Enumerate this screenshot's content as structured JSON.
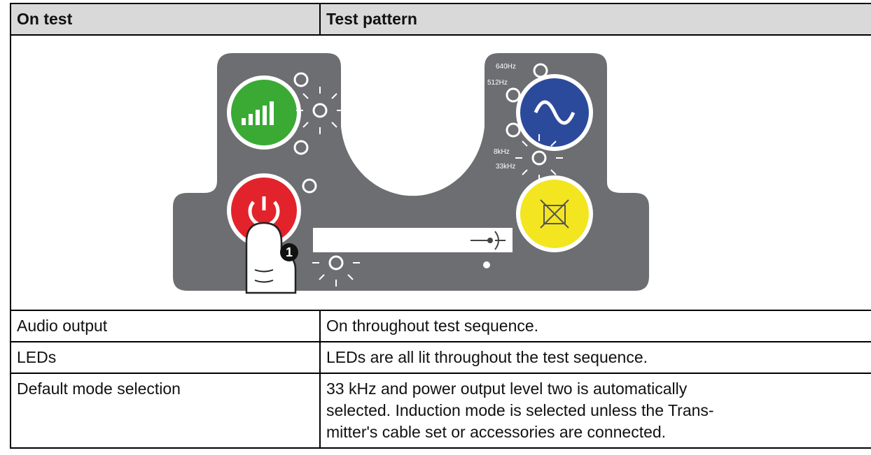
{
  "table": {
    "header": [
      "On test",
      "Test pattern"
    ],
    "rows": [
      [
        "Audio output",
        "On throughout test sequence."
      ],
      [
        "LEDs",
        "LEDs are all lit throughout the test sequence."
      ],
      [
        "Default mode selection",
        [
          "33 kHz and power output level two is automatically",
          "selected. Induction mode is selected unless the Trans-",
          "mitter's cable set or accessories are connected."
        ]
      ]
    ]
  },
  "diagram": {
    "labels": [
      "640Hz",
      "512Hz",
      "8kHz",
      "33kHz"
    ],
    "step": "1"
  }
}
